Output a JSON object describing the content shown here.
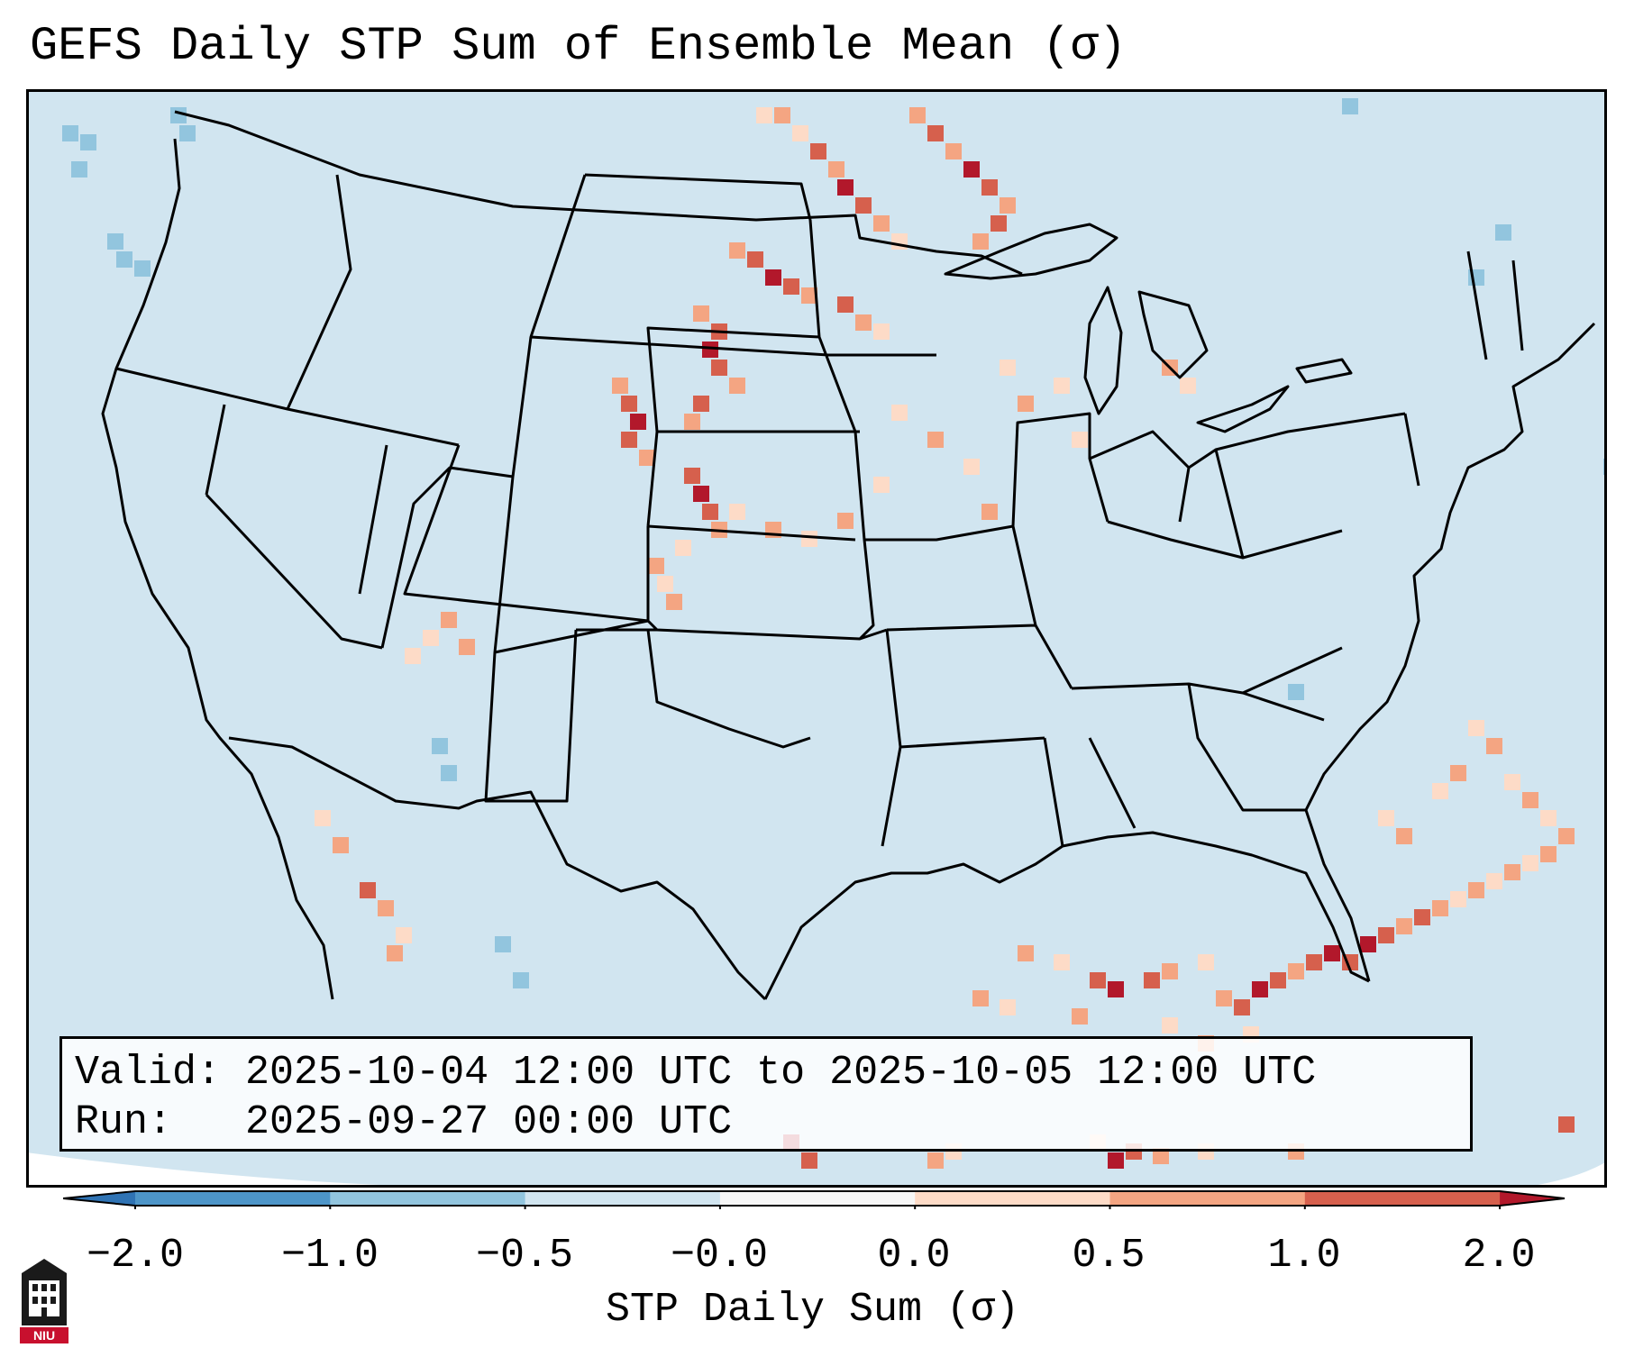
{
  "title": "GEFS Daily STP Sum of Ensemble Mean (σ)",
  "info": {
    "valid_label": "Valid:",
    "valid_text": "2025-10-04 12:00 UTC to 2025-10-05 12:00 UTC",
    "run_label": "Run:",
    "run_text": "2025-09-27 00:00 UTC"
  },
  "colorbar": {
    "label": "STP Daily Sum (σ)",
    "ticks": [
      "−2.0",
      "−1.0",
      "−0.5",
      "−0.0",
      "0.0",
      "0.5",
      "1.0",
      "2.0"
    ],
    "colors": [
      "#2f73b4",
      "#4d95c8",
      "#92c5de",
      "#d1e5f0",
      "#f7f7f7",
      "#fddbc7",
      "#f4a582",
      "#d6604d",
      "#b2182b"
    ]
  },
  "logo": {
    "text": "NIU",
    "icon": "university-building-icon"
  },
  "map": {
    "background_color": "#d1e5f0",
    "projection": "Lambert Conformal CONUS"
  }
}
